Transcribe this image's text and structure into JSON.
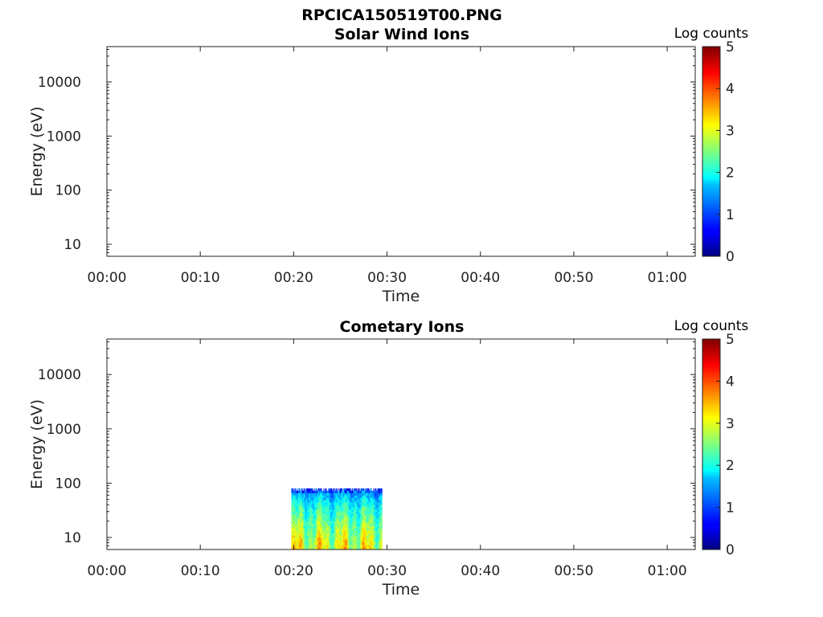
{
  "figure": {
    "title": "RPCICA150519T00.PNG"
  },
  "chart_data": [
    {
      "type": "heatmap",
      "title": "Solar Wind Ions",
      "xlabel": "Time",
      "ylabel": "Energy (eV)",
      "x_scale": "time",
      "y_scale": "log",
      "xlim": [
        "00:00",
        "01:03"
      ],
      "ylim": [
        6,
        45000
      ],
      "x_ticks": [
        "00:00",
        "00:10",
        "00:20",
        "00:30",
        "00:40",
        "00:50",
        "01:00"
      ],
      "y_ticks": [
        "10",
        "100",
        "1000",
        "10000"
      ],
      "colorbar": {
        "label": "Log counts",
        "range": [
          0,
          5
        ],
        "ticks": [
          "0",
          "1",
          "2",
          "3",
          "4",
          "5"
        ],
        "colormap": "jet"
      },
      "data": []
    },
    {
      "type": "heatmap",
      "title": "Cometary Ions",
      "xlabel": "Time",
      "ylabel": "Energy (eV)",
      "x_scale": "time",
      "y_scale": "log",
      "xlim": [
        "00:00",
        "01:03"
      ],
      "ylim": [
        6,
        45000
      ],
      "x_ticks": [
        "00:00",
        "00:10",
        "00:20",
        "00:30",
        "00:40",
        "00:50",
        "01:00"
      ],
      "y_ticks": [
        "10",
        "100",
        "1000",
        "10000"
      ],
      "colorbar": {
        "label": "Log counts",
        "range": [
          0,
          5
        ],
        "ticks": [
          "0",
          "1",
          "2",
          "3",
          "4",
          "5"
        ],
        "colormap": "jet"
      },
      "data": [
        {
          "x_start": "00:19:45",
          "x_end": "00:29:30",
          "e_min": 6,
          "e_max": 80,
          "log_counts_high_energy": 1.0,
          "log_counts_low_energy": 3.0
        }
      ]
    }
  ]
}
